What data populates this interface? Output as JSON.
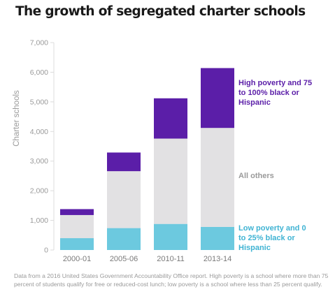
{
  "chart_data": {
    "type": "bar",
    "stacked": true,
    "title": "The growth of segregated charter schools",
    "ylabel": "Charter schools",
    "xlabel": "",
    "ylim": [
      0,
      7000
    ],
    "yticks": [
      0,
      1000,
      2000,
      3000,
      4000,
      5000,
      6000,
      7000
    ],
    "ytick_labels": [
      "0",
      "1,000",
      "2,000",
      "3,000",
      "4,000",
      "5,000",
      "6,000",
      "7,000"
    ],
    "grid": false,
    "legend": "direct labels on the right",
    "categories": [
      "2000-01",
      "2005-06",
      "2010-11",
      "2013-14"
    ],
    "series": [
      {
        "name": "Low poverty and 0 to 25% black or Hispanic",
        "color": "#6cc9df",
        "values": [
          400,
          740,
          880,
          780
        ]
      },
      {
        "name": "All others",
        "color": "#e2e1e3",
        "values": [
          780,
          1920,
          2880,
          3340
        ]
      },
      {
        "name": "High poverty and 75 to 100% black or Hispanic",
        "color": "#5b1ea8",
        "values": [
          200,
          630,
          1360,
          2020
        ]
      }
    ],
    "annotations": [
      {
        "lines": [
          "High poverty and 75",
          "to 100% black or",
          "Hispanic"
        ],
        "color": "#5b1ea8"
      },
      {
        "lines": [
          "All others"
        ],
        "color": "#9a9a9a"
      },
      {
        "lines": [
          "Low poverty and 0",
          "to 25% black or",
          "Hispanic"
        ],
        "color": "#3fb3d3"
      }
    ]
  },
  "footnote": "Data from a 2016 United States Government Accountability Office report. High poverty is a school where more than 75 percent of students qualify for free or reduced-cost lunch; low poverty is a school where less than 25 percent qualify."
}
